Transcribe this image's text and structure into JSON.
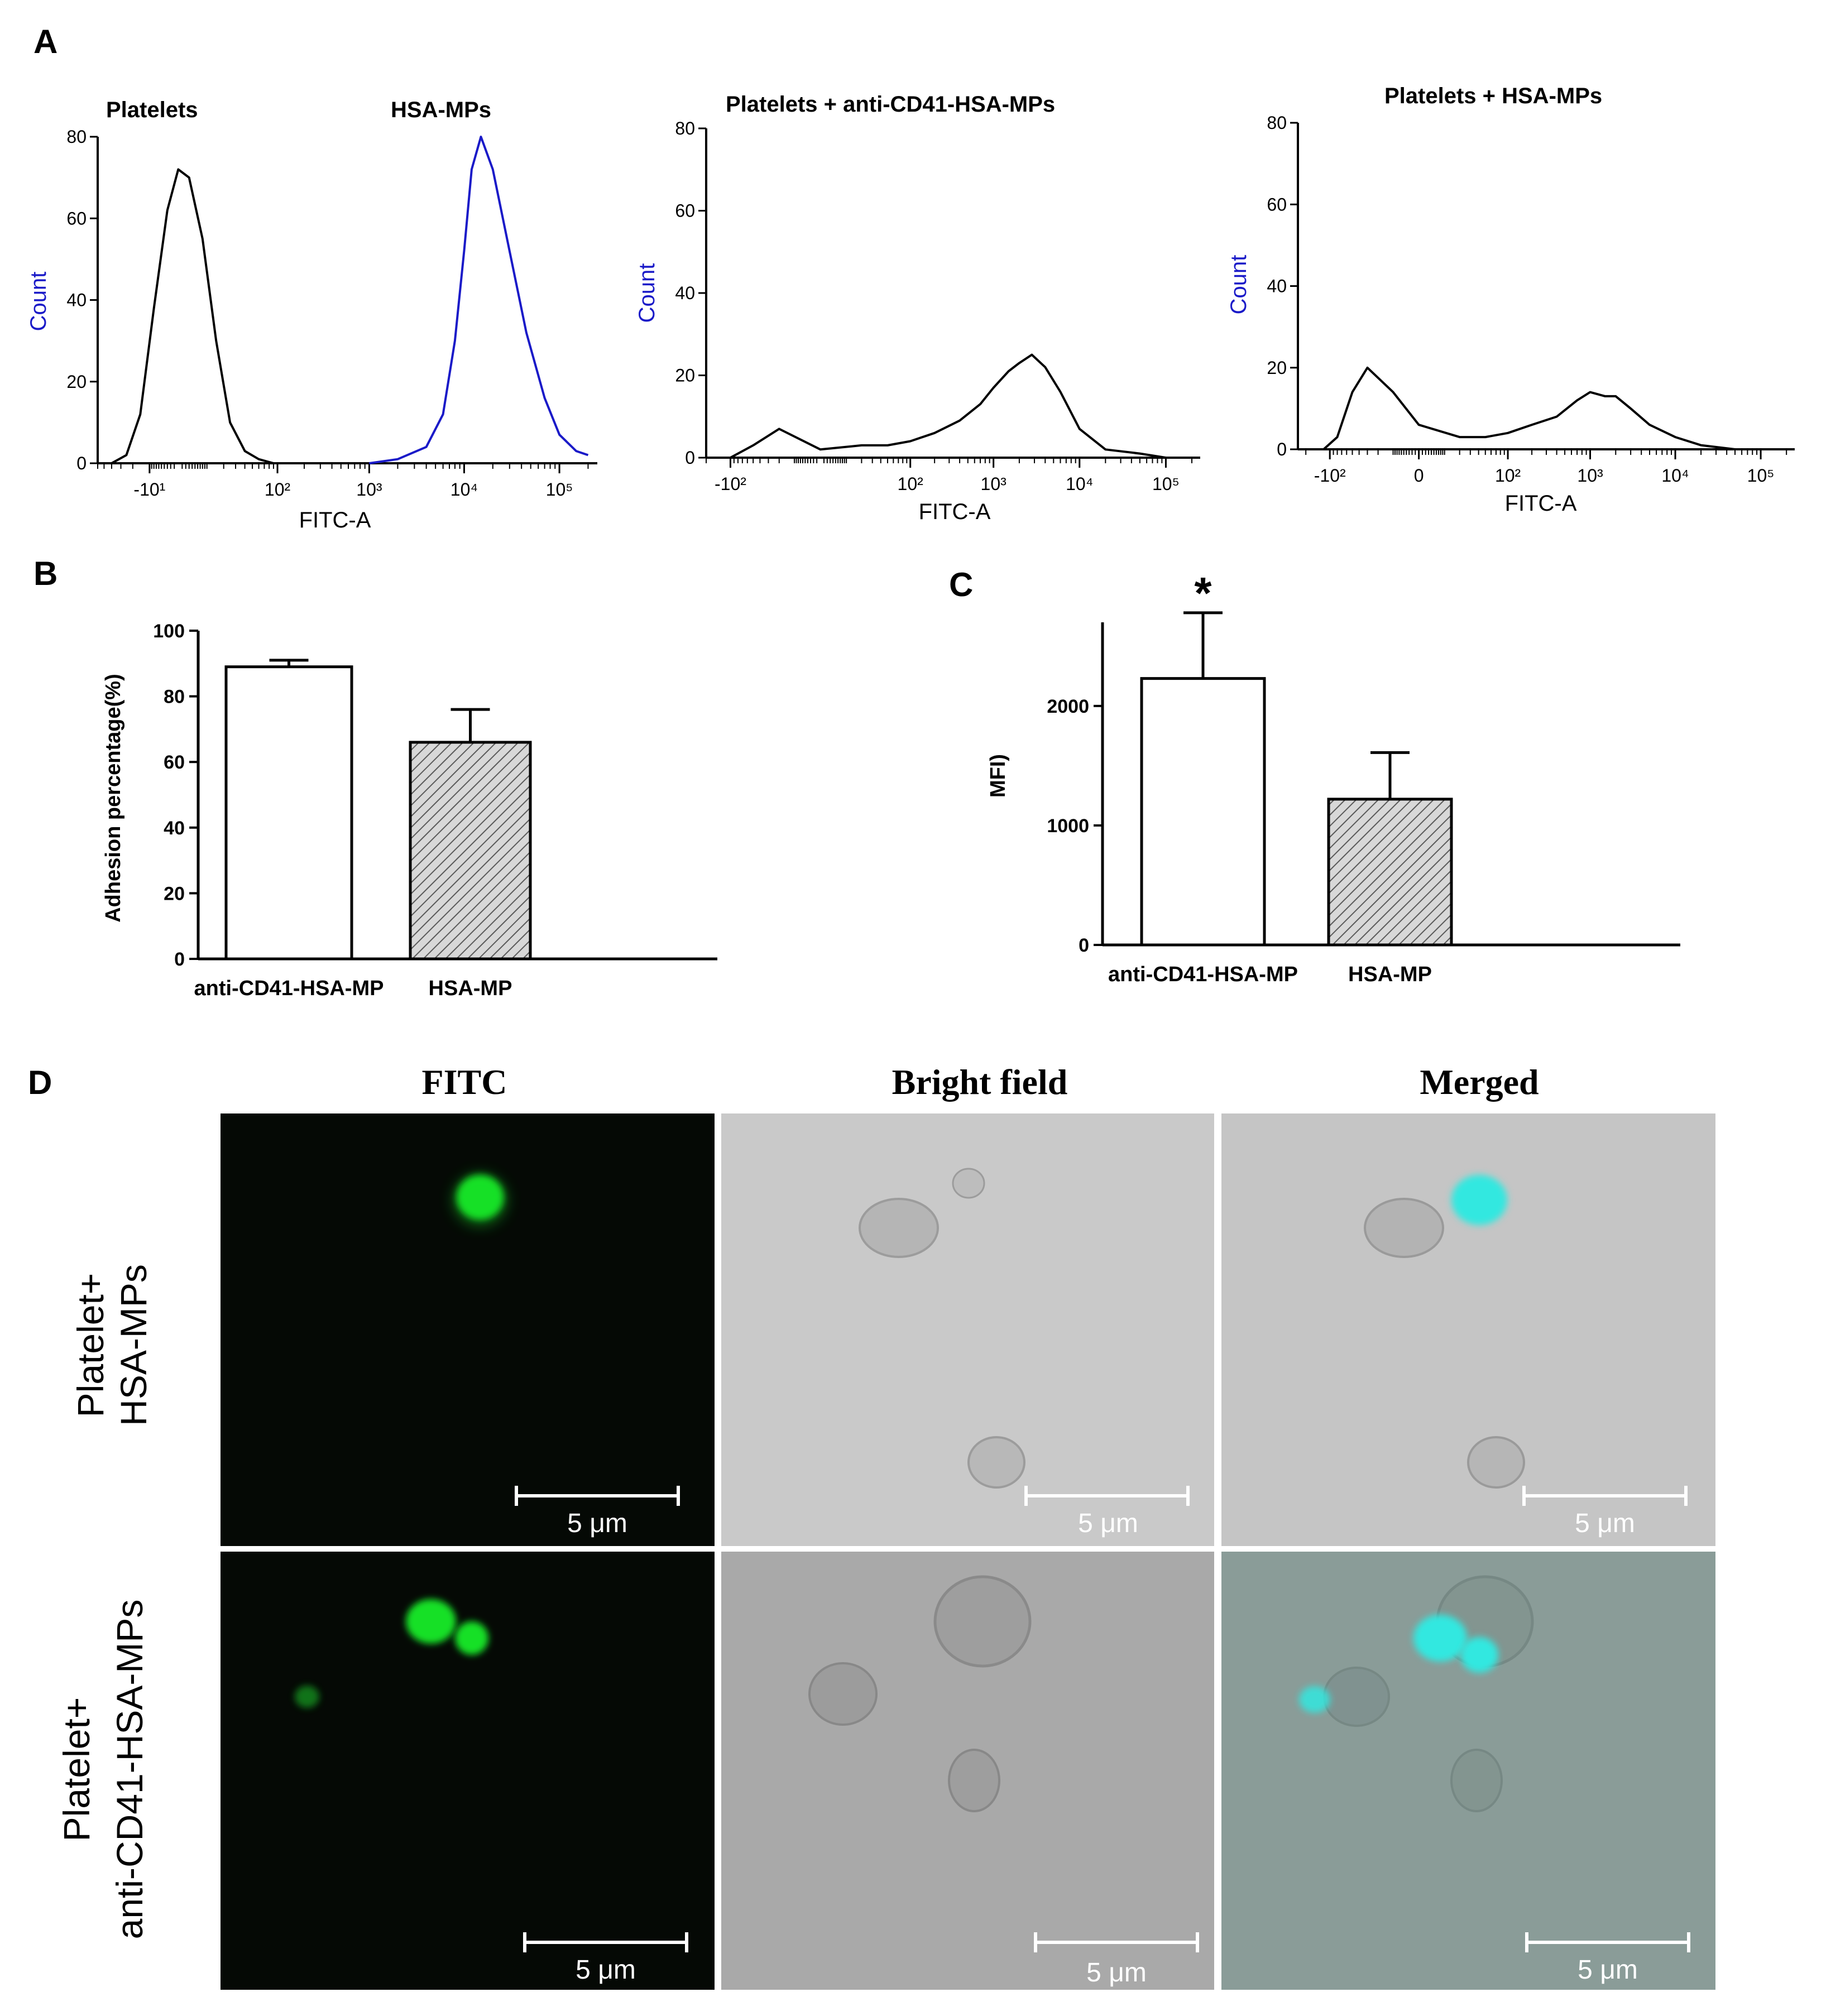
{
  "colors": {
    "hist_black": "#000000",
    "hist_blue": "#1a1ac8",
    "fitc_green": "#18e028",
    "merged_cyan": "#30e8e0",
    "bright_bg": "#c8c8c8"
  },
  "panels": {
    "A": "A",
    "B": "B",
    "C": "C",
    "D": "D"
  },
  "chart_data": [
    {
      "type": "line",
      "panel": "A",
      "labels": [
        "Platelets",
        "HSA-MPs"
      ],
      "xlabel": "FITC-A",
      "ylabel": "Count",
      "ylim": [
        0,
        80
      ],
      "yticks": [
        "0",
        "20",
        "40",
        "60",
        "80"
      ],
      "xticks": [
        "-10¹",
        "10²",
        "10³",
        "10⁴",
        "10⁵"
      ],
      "series": [
        {
          "name": "Platelets",
          "color": "#000000",
          "x": [
            -40,
            -25,
            -15,
            -8,
            -3,
            0,
            3,
            8,
            15,
            25,
            40,
            60,
            90
          ],
          "y": [
            0,
            2,
            12,
            38,
            62,
            72,
            70,
            55,
            30,
            10,
            3,
            1,
            0
          ]
        },
        {
          "name": "HSA-MPs",
          "color": "#1a1ac8",
          "x": [
            1000,
            2000,
            4000,
            6000,
            8000,
            10000,
            12000,
            15000,
            20000,
            30000,
            45000,
            70000,
            100000,
            150000,
            200000
          ],
          "y": [
            0,
            1,
            4,
            12,
            30,
            52,
            72,
            80,
            72,
            52,
            32,
            16,
            7,
            3,
            2
          ]
        }
      ]
    },
    {
      "type": "line",
      "panel": "A",
      "title": "Platelets + anti-CD41-HSA-MPs",
      "xlabel": "FITC-A",
      "ylabel": "Count",
      "ylim": [
        0,
        80
      ],
      "yticks": [
        "0",
        "20",
        "40",
        "60",
        "80"
      ],
      "xticks": [
        "-10²",
        "10²",
        "10³",
        "10⁴",
        "10⁵"
      ],
      "series": [
        {
          "name": "",
          "color": "#000000",
          "x": [
            -100,
            -50,
            -20,
            0,
            20,
            50,
            100,
            200,
            400,
            700,
            1000,
            1500,
            2000,
            2800,
            4000,
            6000,
            10000,
            20000,
            50000,
            100000
          ],
          "y": [
            0,
            3,
            7,
            2,
            3,
            3,
            4,
            6,
            9,
            13,
            17,
            21,
            23,
            25,
            22,
            16,
            7,
            2,
            1,
            0
          ]
        }
      ]
    },
    {
      "type": "line",
      "panel": "A",
      "title": "Platelets + HSA-MPs",
      "xlabel": "FITC-A",
      "ylabel": "Count",
      "ylim": [
        0,
        80
      ],
      "yticks": [
        "0",
        "20",
        "40",
        "60",
        "80"
      ],
      "xticks": [
        "-10²",
        "0",
        "10²",
        "10³",
        "10⁴",
        "10⁵"
      ],
      "series": [
        {
          "name": "",
          "color": "#000000",
          "x": [
            -120,
            -80,
            -50,
            -30,
            -10,
            0,
            20,
            50,
            100,
            200,
            400,
            700,
            1000,
            1500,
            2000,
            3000,
            5000,
            10000,
            20000,
            50000,
            100000
          ],
          "y": [
            0,
            3,
            14,
            20,
            14,
            6,
            3,
            3,
            4,
            6,
            8,
            12,
            14,
            13,
            13,
            10,
            6,
            3,
            1,
            0,
            0
          ]
        }
      ]
    },
    {
      "type": "bar",
      "panel": "B",
      "categories": [
        "anti-CD41-HSA-MP",
        "HSA-MP"
      ],
      "values": [
        89,
        66
      ],
      "errors": [
        2,
        10
      ],
      "ylabel": "Adhesion percentage(%)",
      "ylim": [
        0,
        100
      ],
      "yticks": [
        "0",
        "20",
        "40",
        "60",
        "80",
        "100"
      ]
    },
    {
      "type": "bar",
      "panel": "C",
      "categories": [
        "anti-CD41-HSA-MP",
        "HSA-MP"
      ],
      "values": [
        2230,
        1220
      ],
      "errors": [
        550,
        390
      ],
      "ylabel": "MFI)",
      "ylim": [
        0,
        2700
      ],
      "yticks": [
        "0",
        "1000",
        "2000"
      ],
      "annotation": "*"
    }
  ],
  "microscopy": {
    "columns": [
      "FITC",
      "Bright field",
      "Merged"
    ],
    "rows": [
      {
        "label_line1": "Platelet+",
        "label_line2": "HSA-MPs"
      },
      {
        "label_line1": "Platelet+",
        "label_line2": "anti-CD41-HSA-MPs"
      }
    ],
    "scale_bar": "5 μm"
  }
}
